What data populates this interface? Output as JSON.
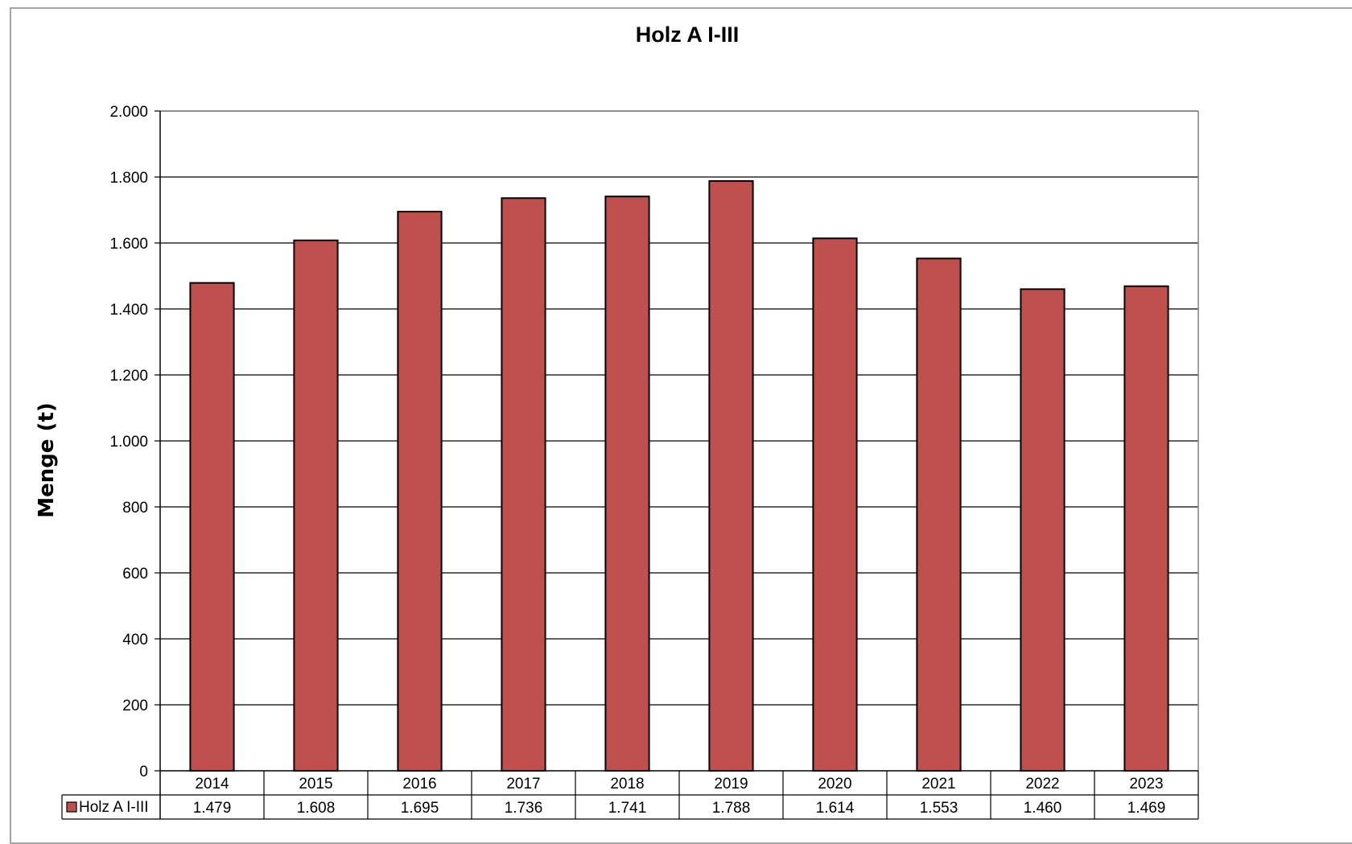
{
  "chart_data": {
    "type": "bar",
    "title": "Holz A I-III",
    "ylabel": "Menge (t)",
    "xlabel": "",
    "ylim": [
      0,
      2000
    ],
    "yticks": [
      0,
      200,
      400,
      600,
      800,
      1000,
      1200,
      1400,
      1600,
      1800,
      2000
    ],
    "ytick_labels": [
      "0",
      "200",
      "400",
      "600",
      "800",
      "1.000",
      "1.200",
      "1.400",
      "1.600",
      "1.800",
      "2.000"
    ],
    "grid": true,
    "legend": "data-table-left",
    "categories": [
      "2014",
      "2015",
      "2016",
      "2017",
      "2018",
      "2019",
      "2020",
      "2021",
      "2022",
      "2023"
    ],
    "series": [
      {
        "name": "Holz A I-III",
        "color": "#c0504d",
        "values": [
          1479,
          1608,
          1695,
          1736,
          1741,
          1788,
          1614,
          1553,
          1460,
          1469
        ],
        "value_labels": [
          "1.479",
          "1.608",
          "1.695",
          "1.736",
          "1.741",
          "1.788",
          "1.614",
          "1.553",
          "1.460",
          "1.469"
        ]
      }
    ]
  }
}
